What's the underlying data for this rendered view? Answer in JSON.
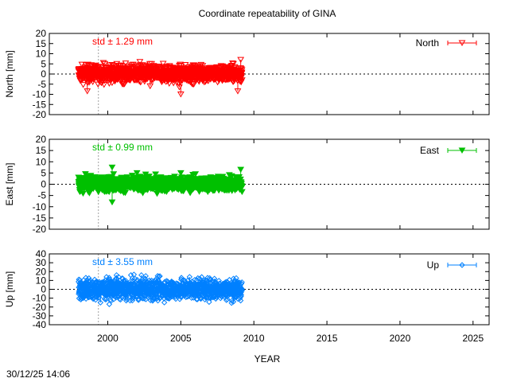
{
  "chart_data": {
    "type": "scatter",
    "title": "Coordinate repeatability of GINA",
    "xlabel": "YEAR",
    "xlim": [
      1996,
      2026.1
    ],
    "x_ticks": [
      2000,
      2005,
      2010,
      2015,
      2020,
      2025
    ],
    "reference_epoch": 1999.36,
    "timestamp": "30/12/25 14:06",
    "panels": [
      {
        "name": "North",
        "ylabel": "North [mm]",
        "ylim": [
          -20,
          20
        ],
        "y_ticks": [
          20,
          15,
          10,
          5,
          0,
          -5,
          -10,
          -15,
          -20
        ],
        "std_label": "std ± 1.29 mm",
        "std": 1.29,
        "color": "#ff0000",
        "marker": "open-down-triangle",
        "data_range": [
          1998.0,
          2009.2
        ],
        "legend": "North",
        "outliers": [
          [
            1998.5,
            4.5
          ],
          [
            1998.6,
            -8.5
          ],
          [
            1999.7,
            5.5
          ],
          [
            2000.3,
            4.5
          ],
          [
            2001.0,
            -5
          ],
          [
            2002.2,
            6
          ],
          [
            2002.9,
            -6
          ],
          [
            2003.0,
            5
          ],
          [
            2004.5,
            -4.5
          ],
          [
            2005.0,
            -10
          ],
          [
            2004.9,
            -6.5
          ],
          [
            2006.5,
            4
          ],
          [
            2007.8,
            3.5
          ],
          [
            2008.6,
            5
          ],
          [
            2008.9,
            -8.5
          ],
          [
            2009.1,
            7
          ]
        ]
      },
      {
        "name": "East",
        "ylabel": "East [mm]",
        "ylim": [
          -20,
          20
        ],
        "y_ticks": [
          20,
          15,
          10,
          5,
          0,
          -5,
          -10,
          -15,
          -20
        ],
        "std_label": "std ± 0.99 mm",
        "std": 0.99,
        "color": "#00c000",
        "marker": "filled-down-triangle",
        "data_range": [
          1998.0,
          2009.2
        ],
        "legend": "East",
        "outliers": [
          [
            2000.3,
            7.5
          ],
          [
            2000.3,
            -8
          ],
          [
            2000.4,
            4.5
          ],
          [
            2002.0,
            5
          ],
          [
            2005.0,
            5
          ],
          [
            2006.0,
            4.5
          ],
          [
            2007.5,
            2.5
          ],
          [
            2009.1,
            6.5
          ]
        ]
      },
      {
        "name": "Up",
        "ylabel": "Up [mm]",
        "ylim": [
          -40,
          40
        ],
        "y_ticks": [
          40,
          30,
          20,
          10,
          0,
          -10,
          -20,
          -30,
          -40
        ],
        "std_label": "std ± 3.55 mm",
        "std": 3.55,
        "color": "#0080ff",
        "marker": "open-diamond",
        "data_range": [
          1998.0,
          2009.2
        ],
        "legend": "Up",
        "outliers": [
          [
            1998.5,
            13
          ],
          [
            1999.5,
            -15
          ],
          [
            2000.6,
            16
          ],
          [
            2002.3,
            16
          ],
          [
            2002.6,
            15
          ],
          [
            2005.6,
            14
          ],
          [
            2006.3,
            12
          ],
          [
            2007.3,
            12
          ],
          [
            2008.6,
            -14
          ],
          [
            2008.6,
            12
          ]
        ]
      }
    ]
  }
}
